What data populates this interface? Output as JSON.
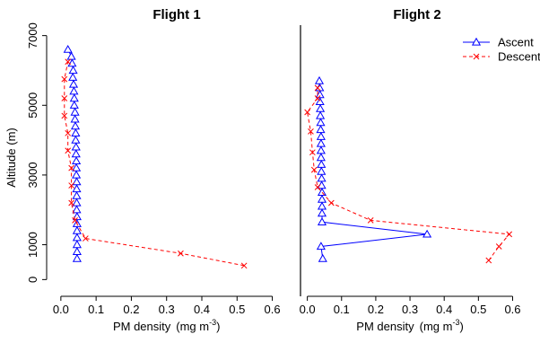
{
  "chart_data": [
    {
      "type": "line",
      "title": "Flight 1",
      "xlabel": "PM density",
      "xlabel_unit": "(mg m",
      "xlabel_exp": "-3",
      "xlabel_close": ")",
      "ylabel": "Altitude (m)",
      "xlim": [
        -0.02,
        0.68
      ],
      "ylim": [
        -300,
        7300
      ],
      "xticks": [
        0.0,
        0.1,
        0.2,
        0.3,
        0.4,
        0.5,
        0.6
      ],
      "xtick_labels": [
        "0.0",
        "0.1",
        "0.2",
        "0.3",
        "0.4",
        "0.5",
        "0.6"
      ],
      "yticks": [
        0,
        1000,
        3000,
        5000,
        7000
      ],
      "ytick_labels": [
        "0",
        "1000",
        "3000",
        "5000",
        "7000"
      ],
      "grid": false,
      "series": [
        {
          "name": "Ascent",
          "color": "#0000ff",
          "marker": "triangle",
          "line": "solid",
          "points": [
            [
              0.02,
              6600
            ],
            [
              0.03,
              6400
            ],
            [
              0.032,
              6200
            ],
            [
              0.035,
              6000
            ],
            [
              0.034,
              5800
            ],
            [
              0.036,
              5600
            ],
            [
              0.037,
              5400
            ],
            [
              0.038,
              5200
            ],
            [
              0.038,
              5000
            ],
            [
              0.04,
              4800
            ],
            [
              0.04,
              4600
            ],
            [
              0.041,
              4400
            ],
            [
              0.042,
              4200
            ],
            [
              0.042,
              4000
            ],
            [
              0.043,
              3800
            ],
            [
              0.043,
              3600
            ],
            [
              0.044,
              3400
            ],
            [
              0.044,
              3200
            ],
            [
              0.044,
              3000
            ],
            [
              0.045,
              2800
            ],
            [
              0.045,
              2600
            ],
            [
              0.045,
              2400
            ],
            [
              0.045,
              2200
            ],
            [
              0.045,
              2000
            ],
            [
              0.046,
              1800
            ],
            [
              0.046,
              1600
            ],
            [
              0.046,
              1400
            ],
            [
              0.046,
              1200
            ],
            [
              0.046,
              1000
            ],
            [
              0.046,
              800
            ],
            [
              0.046,
              600
            ]
          ]
        },
        {
          "name": "Descent",
          "color": "#ff0000",
          "marker": "x",
          "line": "dashed",
          "points": [
            [
              0.52,
              400
            ],
            [
              0.34,
              750
            ],
            [
              0.07,
              1180
            ],
            [
              0.04,
              1700
            ],
            [
              0.03,
              2200
            ],
            [
              0.03,
              2700
            ],
            [
              0.03,
              3200
            ],
            [
              0.02,
              3700
            ],
            [
              0.02,
              4200
            ],
            [
              0.01,
              4700
            ],
            [
              0.01,
              5200
            ],
            [
              0.01,
              5750
            ],
            [
              0.02,
              6250
            ]
          ]
        }
      ]
    },
    {
      "type": "line",
      "title": "Flight 2",
      "xlabel": "PM density",
      "xlabel_unit": "(mg m",
      "xlabel_exp": "-3",
      "xlabel_close": ")",
      "ylabel": "",
      "xlim": [
        -0.02,
        0.68
      ],
      "ylim": [
        -300,
        7300
      ],
      "xticks": [
        0.0,
        0.1,
        0.2,
        0.3,
        0.4,
        0.5,
        0.6
      ],
      "xtick_labels": [
        "0.0",
        "0.1",
        "0.2",
        "0.3",
        "0.4",
        "0.5",
        "0.6"
      ],
      "yticks": [],
      "ytick_labels": [],
      "grid": false,
      "legend_position": "top-right",
      "series": [
        {
          "name": "Ascent",
          "color": "#0000ff",
          "marker": "triangle",
          "line": "solid",
          "points": [
            [
              0.035,
              5700
            ],
            [
              0.036,
              5500
            ],
            [
              0.037,
              5300
            ],
            [
              0.037,
              5100
            ],
            [
              0.038,
              4900
            ],
            [
              0.038,
              4700
            ],
            [
              0.039,
              4500
            ],
            [
              0.039,
              4300
            ],
            [
              0.04,
              4100
            ],
            [
              0.04,
              3900
            ],
            [
              0.04,
              3700
            ],
            [
              0.04,
              3500
            ],
            [
              0.041,
              3300
            ],
            [
              0.041,
              3100
            ],
            [
              0.042,
              2900
            ],
            [
              0.042,
              2700
            ],
            [
              0.043,
              2500
            ],
            [
              0.043,
              2300
            ],
            [
              0.043,
              2100
            ],
            [
              0.043,
              1900
            ],
            [
              0.043,
              1650
            ],
            [
              0.35,
              1300
            ],
            [
              0.04,
              950
            ],
            [
              0.045,
              600
            ]
          ]
        },
        {
          "name": "Descent",
          "color": "#ff0000",
          "marker": "x",
          "line": "dashed",
          "points": [
            [
              0.53,
              550
            ],
            [
              0.56,
              950
            ],
            [
              0.59,
              1300
            ],
            [
              0.185,
              1700
            ],
            [
              0.07,
              2200
            ],
            [
              0.03,
              2650
            ],
            [
              0.02,
              3150
            ],
            [
              0.015,
              3650
            ],
            [
              0.01,
              4250
            ],
            [
              0.0,
              4800
            ],
            [
              0.03,
              5200
            ],
            [
              0.03,
              5500
            ]
          ]
        }
      ]
    }
  ]
}
